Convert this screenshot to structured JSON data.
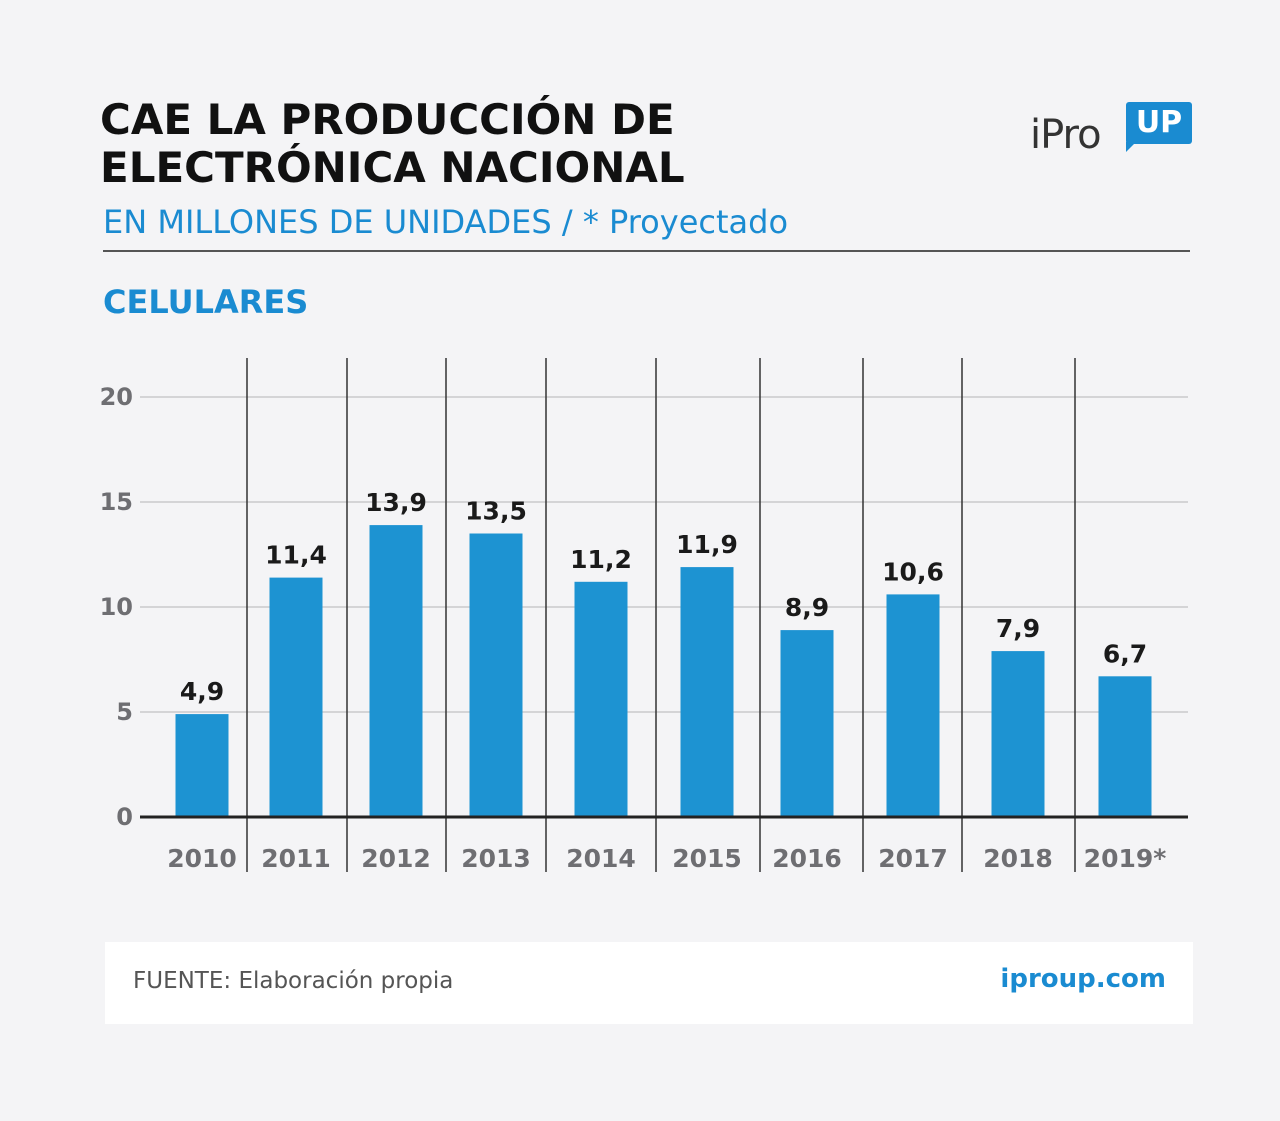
{
  "header": {
    "title_line1": "CAE LA PRODUCCIÓN DE",
    "title_line2": "ELECTRÓNICA NACIONAL",
    "subtitle": "EN MILLONES DE UNIDADES / * Proyectado",
    "section": "CELULARES"
  },
  "logo": {
    "text": "iPro",
    "badge": "UP"
  },
  "footer": {
    "source": "FUENTE: Elaboración propia",
    "site": "iproup.com"
  },
  "colors": {
    "accent": "#1a8bd1",
    "bar": "#1d93d2",
    "title": "#111111",
    "grid": "#c9c9cc",
    "axis_text": "#6e6e72",
    "background": "#f4f4f6"
  },
  "chart_data": {
    "type": "bar",
    "categories": [
      "2010",
      "2011",
      "2012",
      "2013",
      "2014",
      "2015",
      "2016",
      "2017",
      "2018",
      "2019*"
    ],
    "values": [
      4.9,
      11.4,
      13.9,
      13.5,
      11.2,
      11.9,
      8.9,
      10.6,
      7.9,
      6.7
    ],
    "value_labels": [
      "4,9",
      "11,4",
      "13,9",
      "13,5",
      "11,2",
      "11,9",
      "8,9",
      "10,6",
      "7,9",
      "6,7"
    ],
    "y_ticks": [
      "0",
      "5",
      "10",
      "15",
      "20"
    ],
    "ylim": [
      0,
      20
    ],
    "grid": true
  }
}
